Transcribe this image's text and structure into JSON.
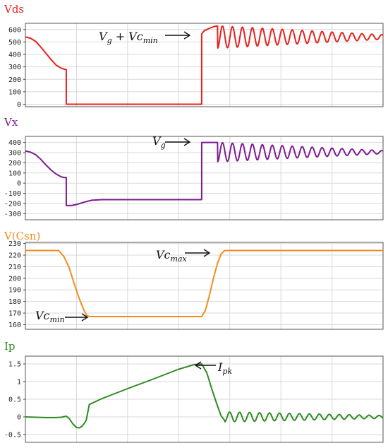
{
  "chart_data": [
    {
      "type": "line",
      "title": "Vds",
      "color": "#e8211d",
      "ylim": [
        -20,
        650
      ],
      "yticks": [
        0,
        100,
        200,
        300,
        400,
        500,
        600
      ],
      "grid": true,
      "x": [
        0,
        0.3,
        1,
        2,
        3,
        4,
        5,
        6,
        7,
        7.6,
        8.0,
        8.001,
        9,
        10,
        15,
        20,
        25,
        30,
        34.5,
        34.501,
        35,
        36,
        37,
        37.6
      ],
      "values": [
        540,
        538,
        530,
        505,
        460,
        410,
        360,
        315,
        290,
        281,
        279,
        0,
        0,
        0,
        0,
        0,
        0,
        0,
        0,
        565,
        590,
        610,
        625,
        628
      ],
      "ringing": {
        "x_start": 37.6,
        "x_end": 70,
        "center": 540,
        "amp_start": 90,
        "amp_end": 18,
        "period": 1.95
      },
      "annotations": [
        {
          "main": "V",
          "parts": [
            [
              "g",
              "sub"
            ],
            [
              " + Vc",
              "main"
            ],
            [
              "min",
              "sub"
            ]
          ],
          "x": 34.5,
          "y": 565
        }
      ]
    },
    {
      "type": "line",
      "title": "Vx",
      "color": "#7e1b91",
      "ylim": [
        -360,
        460
      ],
      "yticks": [
        -300,
        -200,
        -100,
        0,
        100,
        200,
        300,
        400
      ],
      "grid": true,
      "x": [
        0,
        0.3,
        1,
        2,
        3,
        4,
        5,
        6,
        7,
        7.6,
        8.0,
        8.001,
        9,
        10,
        11,
        12,
        13,
        15,
        20,
        25,
        30,
        34.5,
        34.501,
        37.6
      ],
      "values": [
        315,
        313,
        305,
        280,
        235,
        180,
        130,
        90,
        62,
        55,
        55,
        -220,
        -220,
        -210,
        -195,
        -180,
        -168,
        -162,
        -162,
        -162,
        -162,
        -162,
        400,
        400
      ],
      "ringing": {
        "x_start": 37.6,
        "x_end": 70,
        "center": 305,
        "amp_start": 95,
        "amp_end": 15,
        "period": 1.95
      },
      "annotations": [
        {
          "main": "V",
          "parts": [
            [
              "g",
              "sub"
            ]
          ],
          "x": 34.5,
          "y": 400
        }
      ]
    },
    {
      "type": "line",
      "title": "V(Csn)",
      "color": "#f28c1e",
      "ylim": [
        156,
        231
      ],
      "yticks": [
        160,
        170,
        180,
        190,
        200,
        210,
        220,
        230
      ],
      "grid": true,
      "x": [
        0,
        6.5,
        7.5,
        8.5,
        9.5,
        10.5,
        11.5,
        12.0,
        12.5,
        20,
        25,
        30,
        34.5,
        35.2,
        36.0,
        36.8,
        37.6,
        38.3,
        39.0,
        39.5,
        45,
        55,
        70
      ],
      "values": [
        224,
        224,
        219,
        210,
        196,
        183,
        172,
        168,
        167,
        167,
        167,
        167,
        167,
        172,
        185,
        200,
        213,
        221,
        224,
        224,
        224,
        224,
        224
      ],
      "annotations": [
        {
          "main": "Vc",
          "parts": [
            [
              "max",
              "sub"
            ]
          ],
          "x": 39.2,
          "y": 224
        },
        {
          "main": "Vc",
          "parts": [
            [
              "min",
              "sub"
            ]
          ],
          "x": 12.3,
          "y": 167
        }
      ]
    },
    {
      "type": "line",
      "title": "Ip",
      "color": "#2e8b22",
      "ylim": [
        -0.72,
        1.72
      ],
      "yticks": [
        -0.5,
        0,
        0.5,
        1,
        1.5
      ],
      "grid": true,
      "x": [
        0,
        2,
        4,
        6,
        7,
        8,
        8.6,
        9.3,
        10,
        10.6,
        11.2,
        11.9,
        12.5,
        15,
        20,
        25,
        30,
        33,
        34.5,
        35.5,
        36.5,
        37.5,
        38.3,
        39.0
      ],
      "values": [
        0,
        -0.01,
        -0.02,
        -0.02,
        -0.01,
        0.02,
        -0.05,
        -0.2,
        -0.3,
        -0.31,
        -0.25,
        -0.1,
        0.35,
        0.52,
        0.8,
        1.07,
        1.35,
        1.48,
        1.5,
        1.25,
        0.78,
        0.35,
        0.03,
        -0.1
      ],
      "ringing": {
        "x_start": 39.0,
        "x_end": 70,
        "center": 0.0,
        "amp_start": 0.14,
        "amp_end": 0.04,
        "period": 1.95
      },
      "annotations": [
        {
          "main": "I",
          "parts": [
            [
              "pk",
              "sub"
            ]
          ],
          "x": 36.0,
          "y": 1.5
        }
      ]
    }
  ]
}
